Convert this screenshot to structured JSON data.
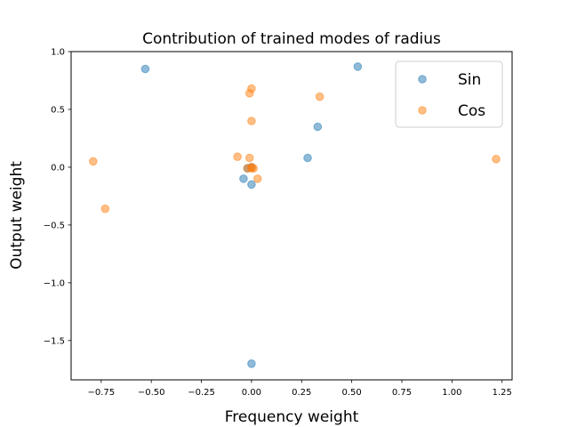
{
  "chart_data": {
    "type": "scatter",
    "title": "Contribution of trained modes of radius",
    "xlabel": "Frequency weight",
    "ylabel": "Output weight",
    "xlim": [
      -0.9,
      1.3
    ],
    "ylim": [
      -1.84,
      1.0
    ],
    "xticks": [
      -0.75,
      -0.5,
      -0.25,
      0.0,
      0.25,
      0.5,
      0.75,
      1.0,
      1.25
    ],
    "xtick_labels": [
      "−0.75",
      "−0.50",
      "−0.25",
      "0.00",
      "0.25",
      "0.50",
      "0.75",
      "1.00",
      "1.25"
    ],
    "yticks": [
      -1.5,
      -1.0,
      -0.5,
      0.0,
      0.5,
      1.0
    ],
    "ytick_labels": [
      "−1.5",
      "−1.0",
      "−0.5",
      "0.0",
      "0.5",
      "1.0"
    ],
    "legend_position": "top-right",
    "grid": false,
    "series": [
      {
        "name": "Sin",
        "color": "#1f77b4",
        "points": [
          {
            "x": -0.53,
            "y": 0.85
          },
          {
            "x": 0.53,
            "y": 0.87
          },
          {
            "x": 0.33,
            "y": 0.35
          },
          {
            "x": 0.28,
            "y": 0.08
          },
          {
            "x": -0.04,
            "y": -0.1
          },
          {
            "x": 0.0,
            "y": -0.15
          },
          {
            "x": -0.02,
            "y": -0.01
          },
          {
            "x": 0.0,
            "y": 0.0
          },
          {
            "x": 0.0,
            "y": -1.7
          }
        ]
      },
      {
        "name": "Cos",
        "color": "#ff7f0e",
        "points": [
          {
            "x": -0.79,
            "y": 0.05
          },
          {
            "x": -0.73,
            "y": -0.36
          },
          {
            "x": -0.01,
            "y": 0.64
          },
          {
            "x": 0.0,
            "y": 0.68
          },
          {
            "x": 0.34,
            "y": 0.61
          },
          {
            "x": 0.0,
            "y": 0.4
          },
          {
            "x": -0.07,
            "y": 0.09
          },
          {
            "x": -0.01,
            "y": 0.08
          },
          {
            "x": 0.03,
            "y": -0.1
          },
          {
            "x": -0.02,
            "y": -0.01
          },
          {
            "x": 0.0,
            "y": 0.0
          },
          {
            "x": 0.01,
            "y": -0.01
          },
          {
            "x": 0.0,
            "y": -0.01
          },
          {
            "x": 1.22,
            "y": 0.07
          }
        ]
      }
    ]
  }
}
